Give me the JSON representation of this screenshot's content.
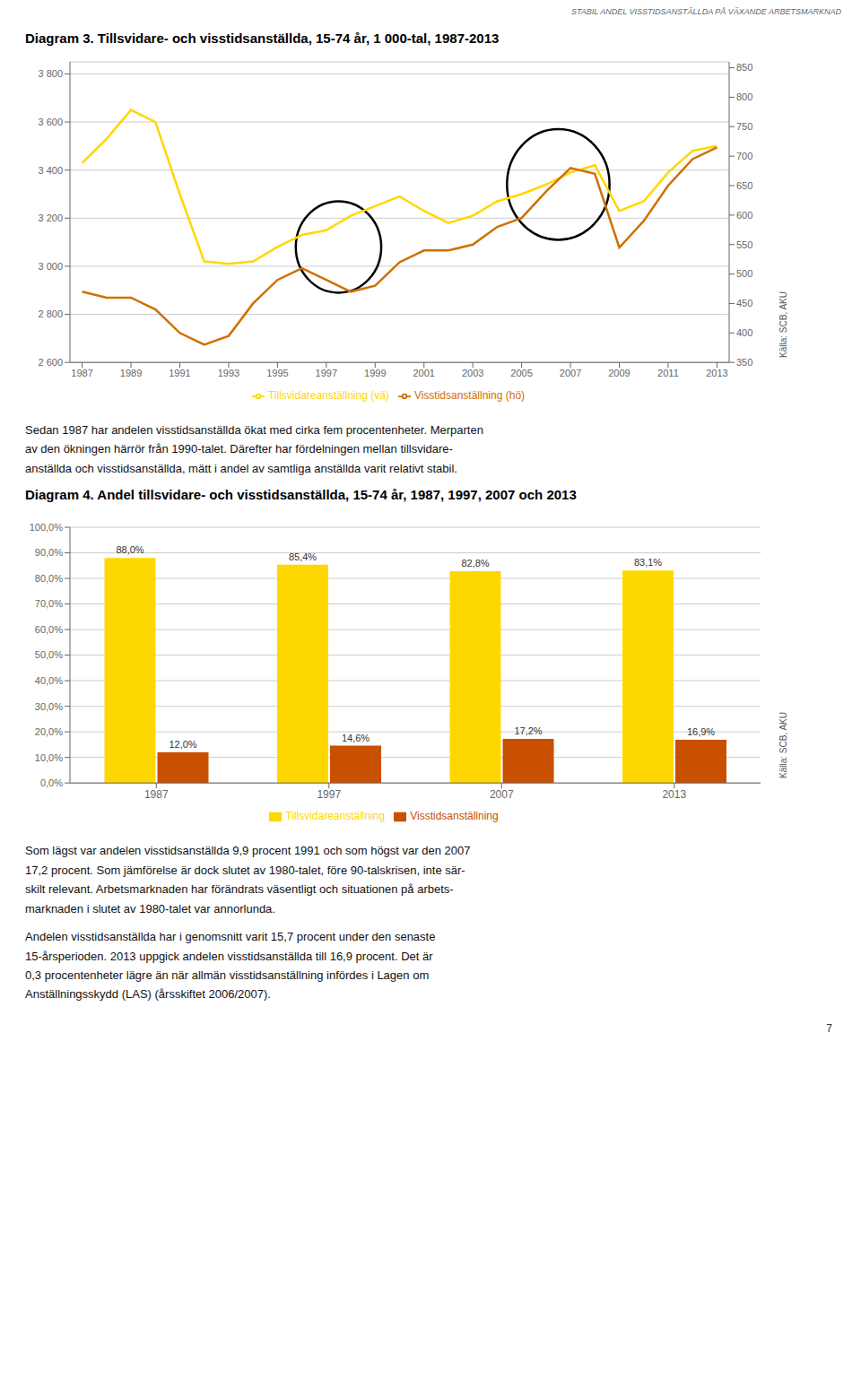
{
  "chart_data": [
    {
      "type": "line",
      "title": "Diagram 3. Tillsvidare- och visstidsanställda, 15-74 år, 1 000-tal, 1987-2013",
      "annotations": [
        "STABIL ANDEL VISSTIDSANSTÄLLDA PÅ VÄXANDE ARBETSMARKNAD",
        "Källa: SCB, AKU",
        "Sedan 1987 har andelen visstidsanställda ökat med cirka fem procentenheter. Merparten\nav den ökningen härrör från 1990-talet. Därefter har fördelningen mellan tillsvidare-\nanställda och visstidsanställda, mätt i andel av samtliga anställda varit relativt stabil."
      ],
      "x": [
        1987,
        1988,
        1989,
        1990,
        1991,
        1992,
        1993,
        1994,
        1995,
        1996,
        1997,
        1998,
        1999,
        2000,
        2001,
        2002,
        2003,
        2004,
        2005,
        2006,
        2007,
        2008,
        2009,
        2010,
        2011,
        2012,
        2013
      ],
      "xlim": [
        1986.5,
        2013.5
      ],
      "xticks": [
        1987,
        1989,
        1991,
        1993,
        1995,
        1997,
        1999,
        2001,
        2003,
        2005,
        2007,
        2009,
        2011,
        2013
      ],
      "ylim": [
        2600,
        3850
      ],
      "yticks": [
        {
          "value": 2600,
          "label": "2 600"
        },
        {
          "value": 2800,
          "label": "2 800"
        },
        {
          "value": 3000,
          "label": "3 000"
        },
        {
          "value": 3200,
          "label": "3 200"
        },
        {
          "value": 3400,
          "label": "3 400"
        },
        {
          "value": 3600,
          "label": "3 600"
        },
        {
          "value": 3800,
          "label": "3 800"
        }
      ],
      "y2lim": [
        350,
        860
      ],
      "y2ticks": [
        350,
        400,
        450,
        500,
        550,
        600,
        650,
        700,
        750,
        800,
        850
      ],
      "grid": true,
      "legend": "bottom",
      "series": [
        {
          "name": "Tillsvidareanställning (vä)",
          "color": "#FFD700",
          "values": [
            3430,
            3530,
            3650,
            3600,
            3300,
            3020,
            3010,
            3020,
            3080,
            3130,
            3150,
            3210,
            3250,
            3290,
            3230,
            3180,
            3210,
            3270,
            3300,
            3340,
            3390,
            3420,
            3230,
            3270,
            3390,
            3480,
            3500
          ]
        },
        {
          "name": "Visstidsanställning (hö)",
          "color": "#D07000",
          "axis": "y2",
          "values": [
            470,
            460,
            460,
            440,
            400,
            380,
            395,
            450,
            490,
            510,
            490,
            470,
            480,
            520,
            540,
            540,
            550,
            580,
            595,
            640,
            680,
            670,
            545,
            590,
            650,
            695,
            715
          ]
        }
      ],
      "ellipses": [
        {
          "x": 1997.5,
          "y": 3080,
          "width": 3.5,
          "height": 380
        },
        {
          "x": 2006.5,
          "y": 3340,
          "width": 4.2,
          "height": 460
        }
      ]
    },
    {
      "type": "bar",
      "title": "Diagram 4. Andel tillsvidare- och visstidsanställda, 15-74 år, 1987, 1997, 2007 och 2013",
      "annotations": [
        "Källa: SCB, AKU",
        "Som lägst var andelen visstidsanställda 9,9 procent 1991 och som högst var den 2007\n17,2 procent. Som jämförelse är dock slutet av 1980-talet, före 90-talskrisen, inte sär-\nskilt relevant. Arbetsmarknaden har förändrats väsentligt och situationen på arbets-\nmarknaden i slutet av 1980-talet var annorlunda.",
        "Andelen visstidsanställda har i genomsnitt varit 15,7 procent under den senaste\n15-årsperioden. 2013 uppgick andelen visstidsanställda till 16,9 procent. Det är\n0,3 procentenheter lägre än när allmän visstidsanställning infördes i Lagen om\nAnställningsskydd (LAS) (årsskiftet 2006/2007).",
        "7"
      ],
      "categories": [
        "1987",
        "1997",
        "2007",
        "2013"
      ],
      "ylim": [
        0,
        100
      ],
      "yticks": [
        {
          "value": 0,
          "label": "0,0%"
        },
        {
          "value": 10,
          "label": "10,0%"
        },
        {
          "value": 20,
          "label": "20,0%"
        },
        {
          "value": 30,
          "label": "30,0%"
        },
        {
          "value": 40,
          "label": "40,0%"
        },
        {
          "value": 50,
          "label": "50,0%"
        },
        {
          "value": 60,
          "label": "60,0%"
        },
        {
          "value": 70,
          "label": "70,0%"
        },
        {
          "value": 80,
          "label": "80,0%"
        },
        {
          "value": 90,
          "label": "90,0%"
        },
        {
          "value": 100,
          "label": "100,0%"
        }
      ],
      "grid": true,
      "legend": "bottom",
      "data_labels": true,
      "series": [
        {
          "name": "Tillsvidareanställning",
          "color": "#FFD700",
          "values": [
            88.0,
            85.4,
            82.8,
            83.1
          ],
          "value_labels": [
            "88,0%",
            "85,4%",
            "82,8%",
            "83,1%"
          ]
        },
        {
          "name": "Visstidsanställning",
          "color": "#C85000",
          "values": [
            12.0,
            14.6,
            17.2,
            16.9
          ],
          "value_labels": [
            "12,0%",
            "14,6%",
            "17,2%",
            "16,9%"
          ]
        }
      ]
    }
  ]
}
